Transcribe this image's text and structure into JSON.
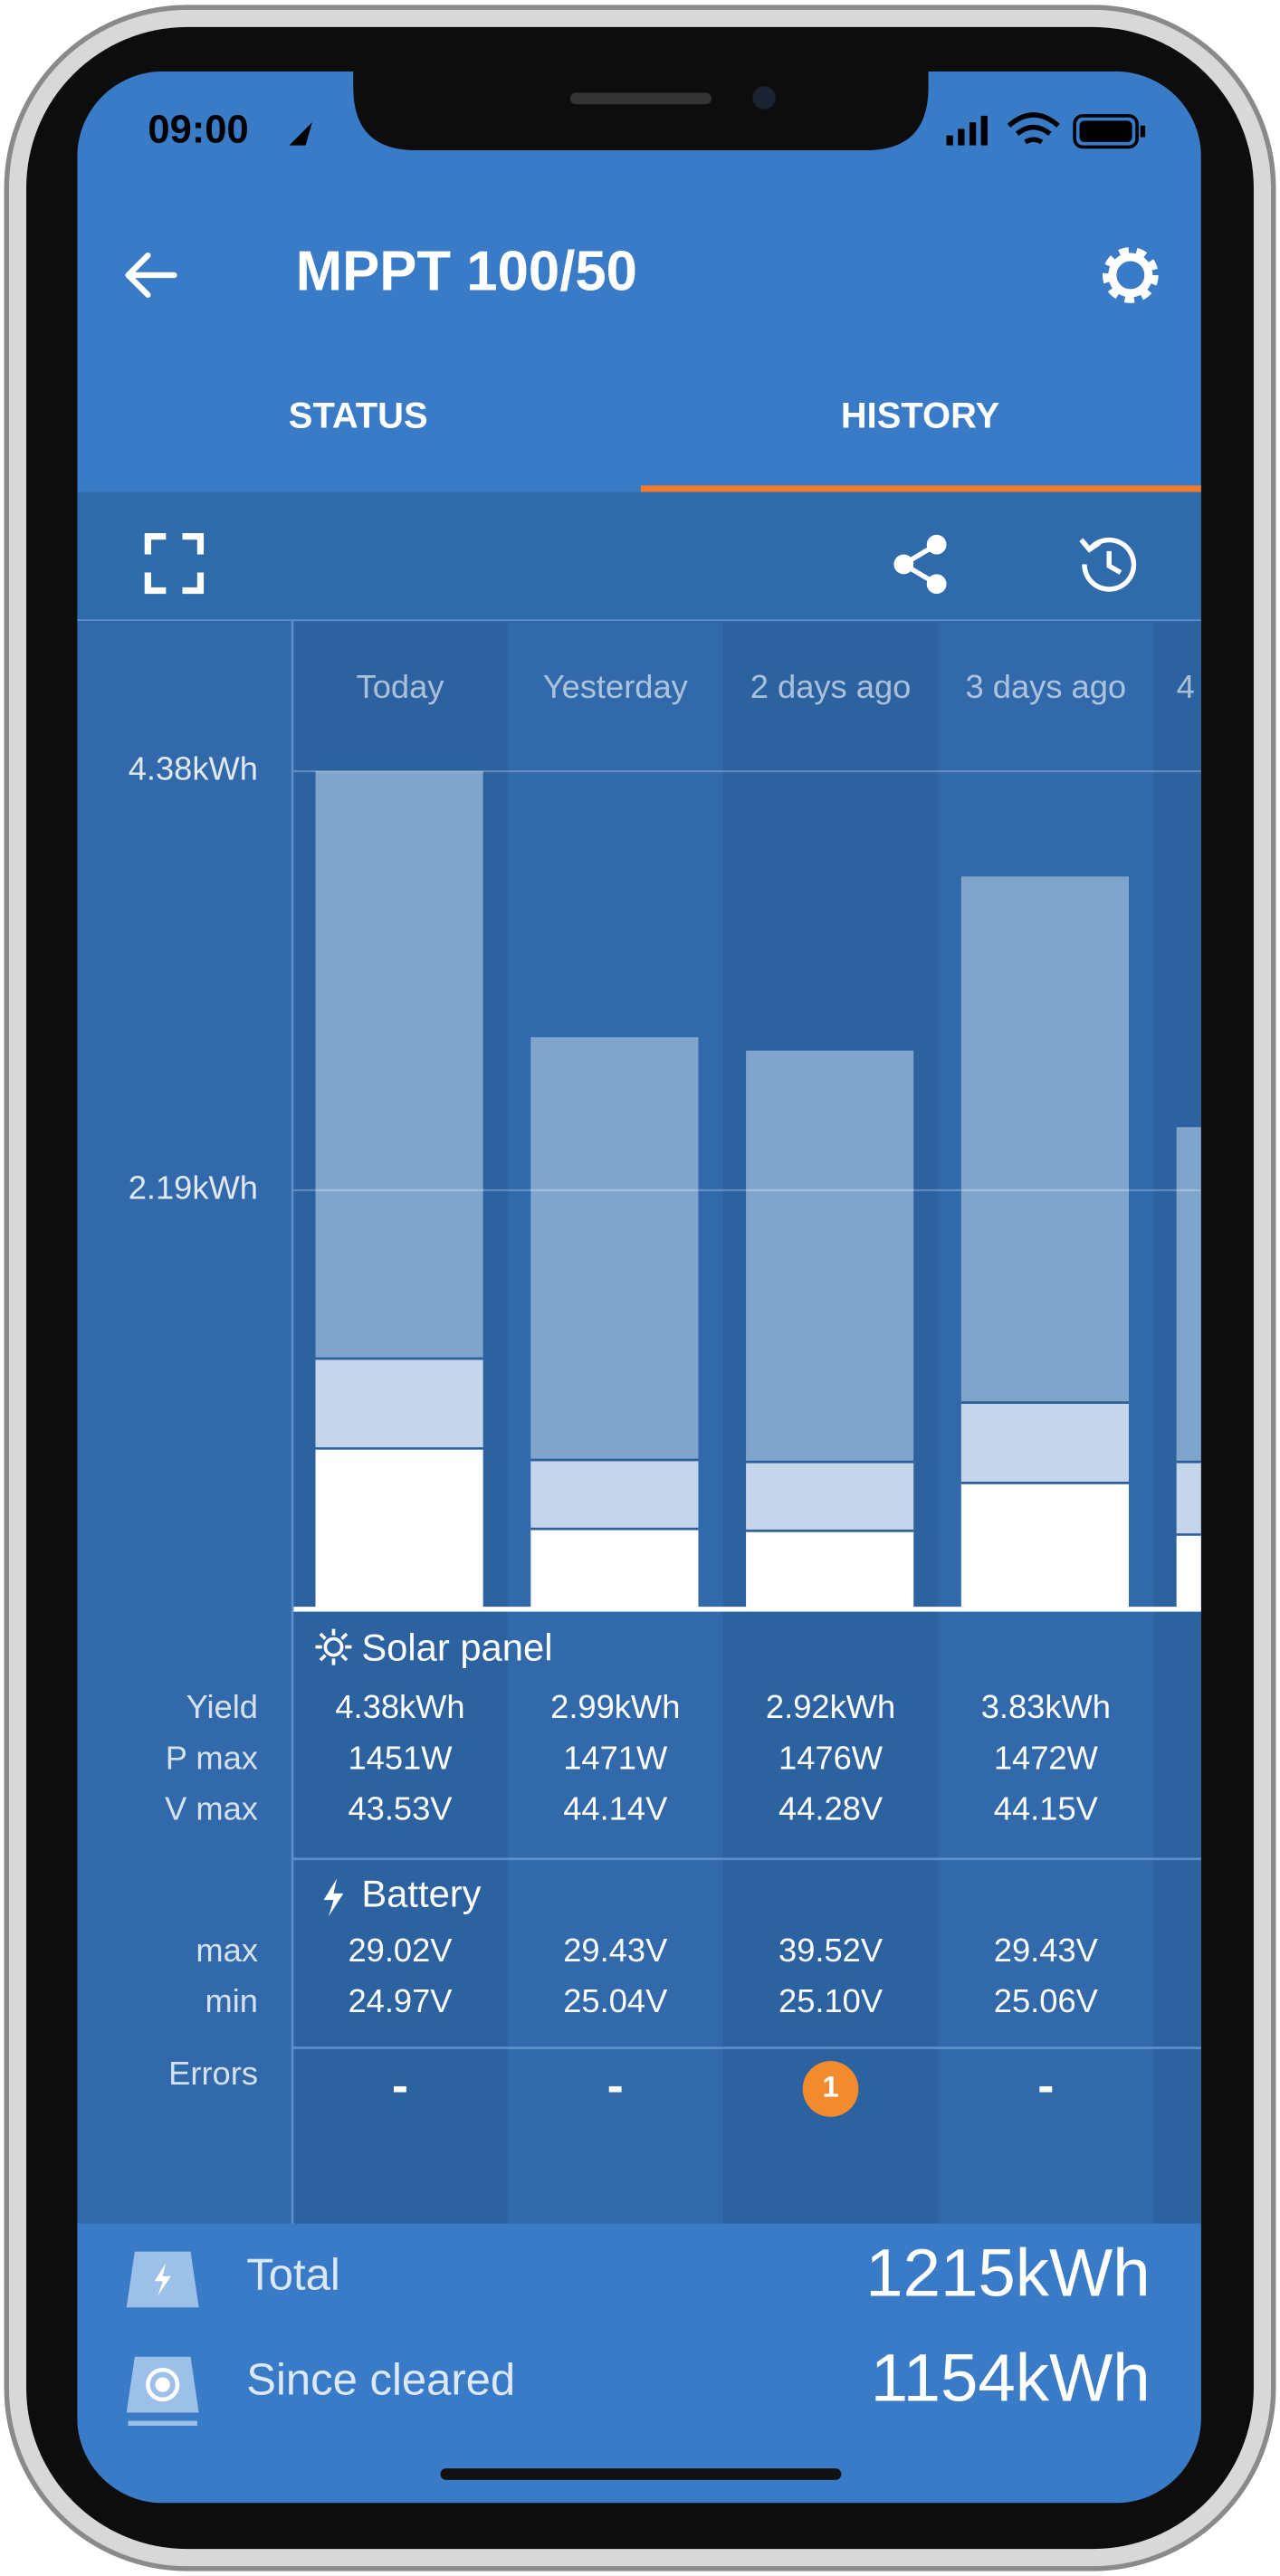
{
  "status_bar": {
    "time": "09:00"
  },
  "header": {
    "title": "MPPT 100/50"
  },
  "tabs": [
    "STATUS",
    "HISTORY"
  ],
  "chart_data": {
    "type": "stacked-bar",
    "categories": [
      "Today",
      "Yesterday",
      "2 days ago",
      "3 days ago",
      "4"
    ],
    "series": [
      {
        "color": "#ffffff",
        "values": [
          0.84,
          0.42,
          0.41,
          0.66,
          0.39
        ]
      },
      {
        "color": "#c6d6ea",
        "values": [
          0.47,
          0.36,
          0.36,
          0.42,
          0.38
        ]
      },
      {
        "color": "#80a5cc",
        "values": [
          3.07,
          2.21,
          2.15,
          2.75,
          1.75
        ]
      }
    ],
    "ylim": [
      0,
      4.38
    ],
    "yticks": [
      {
        "value": 2.19,
        "label": "2.19kWh"
      },
      {
        "value": 4.38,
        "label": "4.38kWh"
      }
    ],
    "grid": true
  },
  "table": {
    "sections": [
      {
        "title": "Solar panel",
        "rows": [
          {
            "label": "Yield",
            "values": [
              "4.38kWh",
              "2.99kWh",
              "2.92kWh",
              "3.83kWh"
            ]
          },
          {
            "label": "P max",
            "values": [
              "1451W",
              "1471W",
              "1476W",
              "1472W"
            ]
          },
          {
            "label": "V max",
            "values": [
              "43.53V",
              "44.14V",
              "44.28V",
              "44.15V"
            ]
          }
        ]
      },
      {
        "title": "Battery",
        "rows": [
          {
            "label": "max",
            "values": [
              "29.02V",
              "29.43V",
              "39.52V",
              "29.43V"
            ]
          },
          {
            "label": "min",
            "values": [
              "24.97V",
              "25.04V",
              "25.10V",
              "25.06V"
            ]
          }
        ]
      }
    ],
    "errors": {
      "label": "Errors",
      "values": [
        "-",
        "-",
        "1",
        "-"
      ]
    }
  },
  "totals": [
    {
      "label": "Total",
      "value": "1215kWh"
    },
    {
      "label": "Since cleared",
      "value": "1154kWh"
    }
  ]
}
